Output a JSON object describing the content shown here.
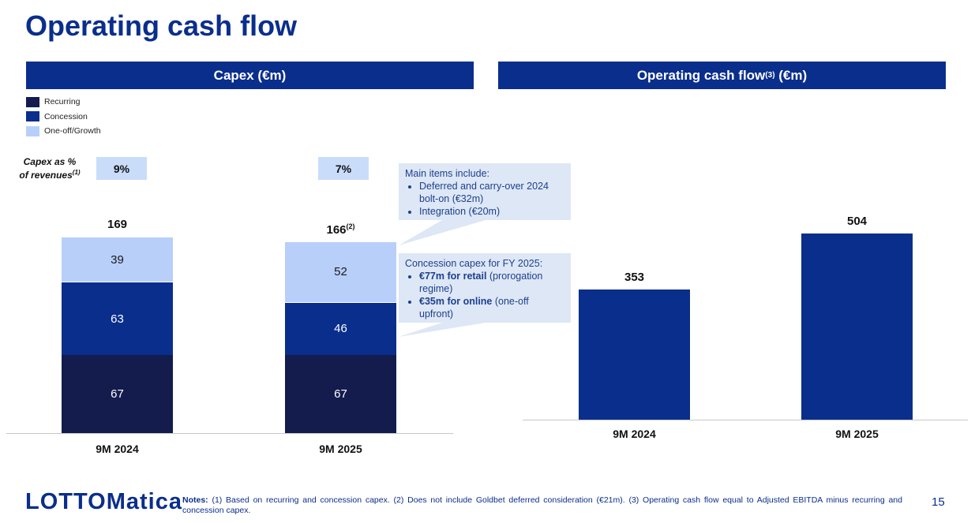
{
  "page": {
    "title": "Operating cash flow",
    "page_number": "15",
    "logo_text": "LOTTOMatica"
  },
  "left_panel": {
    "header": "Capex (€m)",
    "legend": [
      "Recurring",
      "Concession",
      "One-off/Growth"
    ],
    "capex_pct_label": "Capex as % of revenues",
    "capex_pct_label_line1": "Capex as %",
    "capex_pct_label_line2": "of revenues",
    "capex_pct_sup": "(1)",
    "capex_pct": [
      "9%",
      "7%"
    ],
    "totals": [
      "169",
      "166"
    ],
    "total_sup_2025": "(2)"
  },
  "right_panel": {
    "header": "Operating cash flow",
    "header_sup": "(3)",
    "header_unit": "(€m)"
  },
  "callouts": {
    "main_items": {
      "intro": "Main items include:",
      "bullets": [
        "Deferred and carry-over 2024 bolt-on (€32m)",
        "Integration (€20m)"
      ]
    },
    "concession": {
      "intro": "Concession capex for FY 2025:",
      "bullet1_bold": "€77m for retail",
      "bullet1_rest": " (prorogation regime)",
      "bullet2_bold": "€35m for online",
      "bullet2_rest": " (one-off upfront)"
    }
  },
  "notes": {
    "label": "Notes:",
    "text": " (1) Based on recurring and concession capex. (2) Does not include Goldbet deferred consideration (€21m). (3) Operating cash flow equal to Adjusted EBITDA minus recurring and concession capex."
  },
  "colors": {
    "brand": "#0a2e8c",
    "recurring": "#141b4d",
    "concession": "#0a2e8c",
    "oneoff": "#b8cffa",
    "callout_bg": "#dde7f5"
  },
  "chart_data": [
    {
      "type": "bar",
      "stacked": true,
      "title": "Capex (€m)",
      "categories": [
        "9M 2024",
        "9M 2025"
      ],
      "series": [
        {
          "name": "Recurring",
          "values": [
            67,
            67
          ]
        },
        {
          "name": "Concession",
          "values": [
            63,
            46
          ]
        },
        {
          "name": "One-off/Growth",
          "values": [
            39,
            52
          ]
        }
      ],
      "totals": [
        169,
        166
      ],
      "ylim": [
        0,
        180
      ],
      "grid": false,
      "legend": "top-left"
    },
    {
      "type": "bar",
      "title": "Operating cash flow(3) (€m)",
      "categories": [
        "9M 2024",
        "9M 2025"
      ],
      "values": [
        353,
        504
      ],
      "ylim": [
        0,
        560
      ],
      "grid": false
    }
  ]
}
